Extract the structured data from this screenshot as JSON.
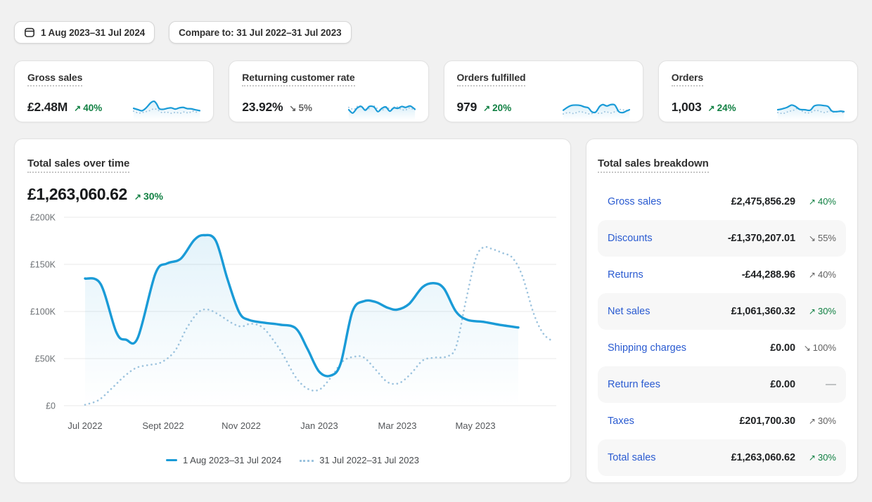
{
  "toolbar": {
    "date_range": "1 Aug 2023–31 Jul 2024",
    "compare_label": "Compare to: 31 Jul 2022–31 Jul 2023"
  },
  "colors": {
    "positive": "#118043",
    "neutral": "#616161",
    "line_solid": "#1a9bd7",
    "line_dotted": "#9cc3de",
    "link_blue": "#2a5bd1",
    "grid": "#e9e9e9",
    "axis_text": "#6d7175",
    "x_text": "#54575a"
  },
  "icons": {
    "trend_up_glyph": "↗",
    "trend_down_glyph": "↘",
    "no_change_glyph": "—",
    "calendar": "calendar-icon"
  },
  "kpis": [
    {
      "label": "Gross sales",
      "value": "£2.48M",
      "delta": "40%",
      "dir": "up",
      "tone": "positive",
      "spark": {
        "solid": [
          [
            0,
            48
          ],
          [
            7,
            42
          ],
          [
            13,
            38
          ],
          [
            19,
            50
          ],
          [
            26,
            72
          ],
          [
            31,
            78
          ],
          [
            35,
            66
          ],
          [
            39,
            46
          ],
          [
            45,
            44
          ],
          [
            51,
            48
          ],
          [
            57,
            50
          ],
          [
            63,
            45
          ],
          [
            69,
            50
          ],
          [
            75,
            52
          ],
          [
            81,
            47
          ],
          [
            87,
            46
          ],
          [
            93,
            42
          ],
          [
            100,
            38
          ]
        ],
        "dotted": [
          [
            0,
            36
          ],
          [
            8,
            28
          ],
          [
            16,
            32
          ],
          [
            24,
            38
          ],
          [
            31,
            46
          ],
          [
            37,
            40
          ],
          [
            43,
            30
          ],
          [
            50,
            32
          ],
          [
            57,
            27
          ],
          [
            64,
            31
          ],
          [
            70,
            27
          ],
          [
            77,
            33
          ],
          [
            83,
            28
          ],
          [
            89,
            36
          ],
          [
            95,
            32
          ],
          [
            100,
            40
          ]
        ]
      }
    },
    {
      "label": "Returning customer rate",
      "value": "23.92%",
      "delta": "5%",
      "dir": "down",
      "tone": "neutral",
      "spark": {
        "solid": [
          [
            0,
            42
          ],
          [
            6,
            28
          ],
          [
            13,
            50
          ],
          [
            19,
            56
          ],
          [
            25,
            40
          ],
          [
            31,
            56
          ],
          [
            38,
            54
          ],
          [
            44,
            34
          ],
          [
            50,
            48
          ],
          [
            56,
            54
          ],
          [
            62,
            36
          ],
          [
            68,
            50
          ],
          [
            74,
            48
          ],
          [
            80,
            56
          ],
          [
            86,
            52
          ],
          [
            93,
            58
          ],
          [
            100,
            44
          ]
        ],
        "dotted": [
          [
            0,
            52
          ],
          [
            8,
            44
          ],
          [
            15,
            60
          ],
          [
            22,
            50
          ],
          [
            29,
            44
          ],
          [
            36,
            60
          ],
          [
            43,
            48
          ],
          [
            50,
            40
          ],
          [
            57,
            52
          ],
          [
            64,
            44
          ],
          [
            71,
            56
          ],
          [
            78,
            46
          ],
          [
            85,
            40
          ],
          [
            92,
            50
          ],
          [
            100,
            38
          ]
        ]
      }
    },
    {
      "label": "Orders fulfilled",
      "value": "979",
      "delta": "20%",
      "dir": "up",
      "tone": "positive",
      "spark": {
        "solid": [
          [
            0,
            40
          ],
          [
            6,
            52
          ],
          [
            12,
            60
          ],
          [
            19,
            62
          ],
          [
            26,
            60
          ],
          [
            32,
            54
          ],
          [
            38,
            50
          ],
          [
            43,
            34
          ],
          [
            49,
            32
          ],
          [
            55,
            56
          ],
          [
            60,
            64
          ],
          [
            66,
            58
          ],
          [
            72,
            64
          ],
          [
            78,
            62
          ],
          [
            84,
            34
          ],
          [
            90,
            30
          ],
          [
            95,
            36
          ],
          [
            100,
            42
          ]
        ],
        "dotted": [
          [
            0,
            24
          ],
          [
            8,
            30
          ],
          [
            16,
            26
          ],
          [
            24,
            34
          ],
          [
            32,
            30
          ],
          [
            40,
            24
          ],
          [
            48,
            30
          ],
          [
            56,
            26
          ],
          [
            64,
            34
          ],
          [
            72,
            28
          ],
          [
            80,
            36
          ],
          [
            88,
            44
          ],
          [
            94,
            38
          ],
          [
            100,
            46
          ]
        ]
      }
    },
    {
      "label": "Orders",
      "value": "1,003",
      "delta": "24%",
      "dir": "up",
      "tone": "positive",
      "spark": {
        "solid": [
          [
            0,
            42
          ],
          [
            7,
            46
          ],
          [
            14,
            52
          ],
          [
            21,
            62
          ],
          [
            27,
            56
          ],
          [
            33,
            44
          ],
          [
            41,
            42
          ],
          [
            49,
            40
          ],
          [
            55,
            58
          ],
          [
            62,
            62
          ],
          [
            69,
            60
          ],
          [
            76,
            56
          ],
          [
            82,
            36
          ],
          [
            89,
            34
          ],
          [
            95,
            36
          ],
          [
            100,
            34
          ]
        ],
        "dotted": [
          [
            0,
            30
          ],
          [
            8,
            26
          ],
          [
            16,
            34
          ],
          [
            24,
            40
          ],
          [
            30,
            48
          ],
          [
            37,
            36
          ],
          [
            44,
            28
          ],
          [
            51,
            32
          ],
          [
            58,
            40
          ],
          [
            65,
            34
          ],
          [
            72,
            30
          ],
          [
            79,
            38
          ],
          [
            86,
            30
          ],
          [
            92,
            36
          ],
          [
            100,
            28
          ]
        ]
      }
    }
  ],
  "main_chart": {
    "title": "Total sales over time",
    "amount": "£1,263,060.62",
    "delta": "30%",
    "dir": "up",
    "tone": "positive"
  },
  "chart_data": {
    "type": "line",
    "title": "Total sales over time",
    "currency": "GBP",
    "grid": "horizontal",
    "legend_position": "bottom-center",
    "x_axis": {
      "ticks": [
        "Jul 2022",
        "Sept 2022",
        "Nov 2022",
        "Jan 2023",
        "Mar 2023",
        "May 2023"
      ],
      "tick_month_positions": [
        0,
        2,
        4,
        6,
        8,
        10
      ],
      "range_months": [
        0,
        12
      ]
    },
    "y_axis": {
      "ticks": [
        "£0",
        "£50K",
        "£100K",
        "£150K",
        "£200K"
      ],
      "tick_values": [
        0,
        50,
        100,
        150,
        200
      ],
      "ylim": [
        0,
        200
      ],
      "unit": "£K"
    },
    "series": [
      {
        "name": "1 Aug 2023–31 Jul 2024",
        "style": "solid",
        "color": "#1a9bd7",
        "area_fill": true,
        "points": [
          [
            0,
            135
          ],
          [
            0.4,
            129
          ],
          [
            0.8,
            78
          ],
          [
            1.05,
            70
          ],
          [
            1.35,
            72
          ],
          [
            1.8,
            140
          ],
          [
            2.1,
            151
          ],
          [
            2.45,
            156
          ],
          [
            2.8,
            176
          ],
          [
            3.05,
            181
          ],
          [
            3.35,
            175
          ],
          [
            3.65,
            134
          ],
          [
            3.95,
            99
          ],
          [
            4.2,
            91
          ],
          [
            4.6,
            88
          ],
          [
            5.0,
            86
          ],
          [
            5.4,
            82
          ],
          [
            5.7,
            60
          ],
          [
            6.0,
            36
          ],
          [
            6.3,
            32
          ],
          [
            6.55,
            45
          ],
          [
            6.85,
            100
          ],
          [
            7.15,
            111
          ],
          [
            7.45,
            110
          ],
          [
            7.75,
            104
          ],
          [
            8.0,
            102
          ],
          [
            8.3,
            108
          ],
          [
            8.65,
            126
          ],
          [
            8.95,
            130
          ],
          [
            9.2,
            124
          ],
          [
            9.5,
            100
          ],
          [
            9.8,
            91
          ],
          [
            10.2,
            89
          ],
          [
            10.6,
            86
          ],
          [
            11.1,
            83
          ]
        ]
      },
      {
        "name": "31 Jul 2022–31 Jul 2023",
        "style": "dotted",
        "color": "#9cc3de",
        "area_fill": false,
        "points": [
          [
            0,
            1
          ],
          [
            0.35,
            6
          ],
          [
            0.7,
            19
          ],
          [
            1.0,
            31
          ],
          [
            1.3,
            40
          ],
          [
            1.6,
            43
          ],
          [
            1.95,
            46
          ],
          [
            2.3,
            58
          ],
          [
            2.6,
            82
          ],
          [
            2.9,
            99
          ],
          [
            3.15,
            102
          ],
          [
            3.45,
            96
          ],
          [
            3.75,
            88
          ],
          [
            4.0,
            84
          ],
          [
            4.25,
            87
          ],
          [
            4.55,
            83
          ],
          [
            4.85,
            68
          ],
          [
            5.1,
            52
          ],
          [
            5.4,
            30
          ],
          [
            5.7,
            18
          ],
          [
            6.0,
            17
          ],
          [
            6.3,
            30
          ],
          [
            6.6,
            47
          ],
          [
            6.9,
            52
          ],
          [
            7.15,
            51
          ],
          [
            7.45,
            38
          ],
          [
            7.75,
            25
          ],
          [
            8.05,
            24
          ],
          [
            8.35,
            34
          ],
          [
            8.65,
            48
          ],
          [
            8.95,
            51
          ],
          [
            9.25,
            52
          ],
          [
            9.5,
            62
          ],
          [
            9.75,
            110
          ],
          [
            10.0,
            155
          ],
          [
            10.2,
            168
          ],
          [
            10.45,
            166
          ],
          [
            10.7,
            162
          ],
          [
            10.95,
            157
          ],
          [
            11.2,
            138
          ],
          [
            11.5,
            97
          ],
          [
            11.75,
            76
          ],
          [
            12.0,
            68
          ]
        ]
      }
    ]
  },
  "breakdown": {
    "title": "Total sales breakdown",
    "rows": [
      {
        "label": "Gross sales",
        "value": "£2,475,856.29",
        "delta": "40%",
        "dir": "up",
        "tone": "positive",
        "striped": false
      },
      {
        "label": "Discounts",
        "value": "-£1,370,207.01",
        "delta": "55%",
        "dir": "down",
        "tone": "neutral",
        "striped": true
      },
      {
        "label": "Returns",
        "value": "-£44,288.96",
        "delta": "40%",
        "dir": "up",
        "tone": "neutral",
        "striped": false
      },
      {
        "label": "Net sales",
        "value": "£1,061,360.32",
        "delta": "30%",
        "dir": "up",
        "tone": "positive",
        "striped": true
      },
      {
        "label": "Shipping charges",
        "value": "£0.00",
        "delta": "100%",
        "dir": "down",
        "tone": "neutral",
        "striped": false
      },
      {
        "label": "Return fees",
        "value": "£0.00",
        "delta": null,
        "dir": null,
        "tone": "neutral",
        "striped": true
      },
      {
        "label": "Taxes",
        "value": "£201,700.30",
        "delta": "30%",
        "dir": "up",
        "tone": "neutral",
        "striped": false
      },
      {
        "label": "Total sales",
        "value": "£1,263,060.62",
        "delta": "30%",
        "dir": "up",
        "tone": "positive",
        "striped": true
      }
    ]
  }
}
